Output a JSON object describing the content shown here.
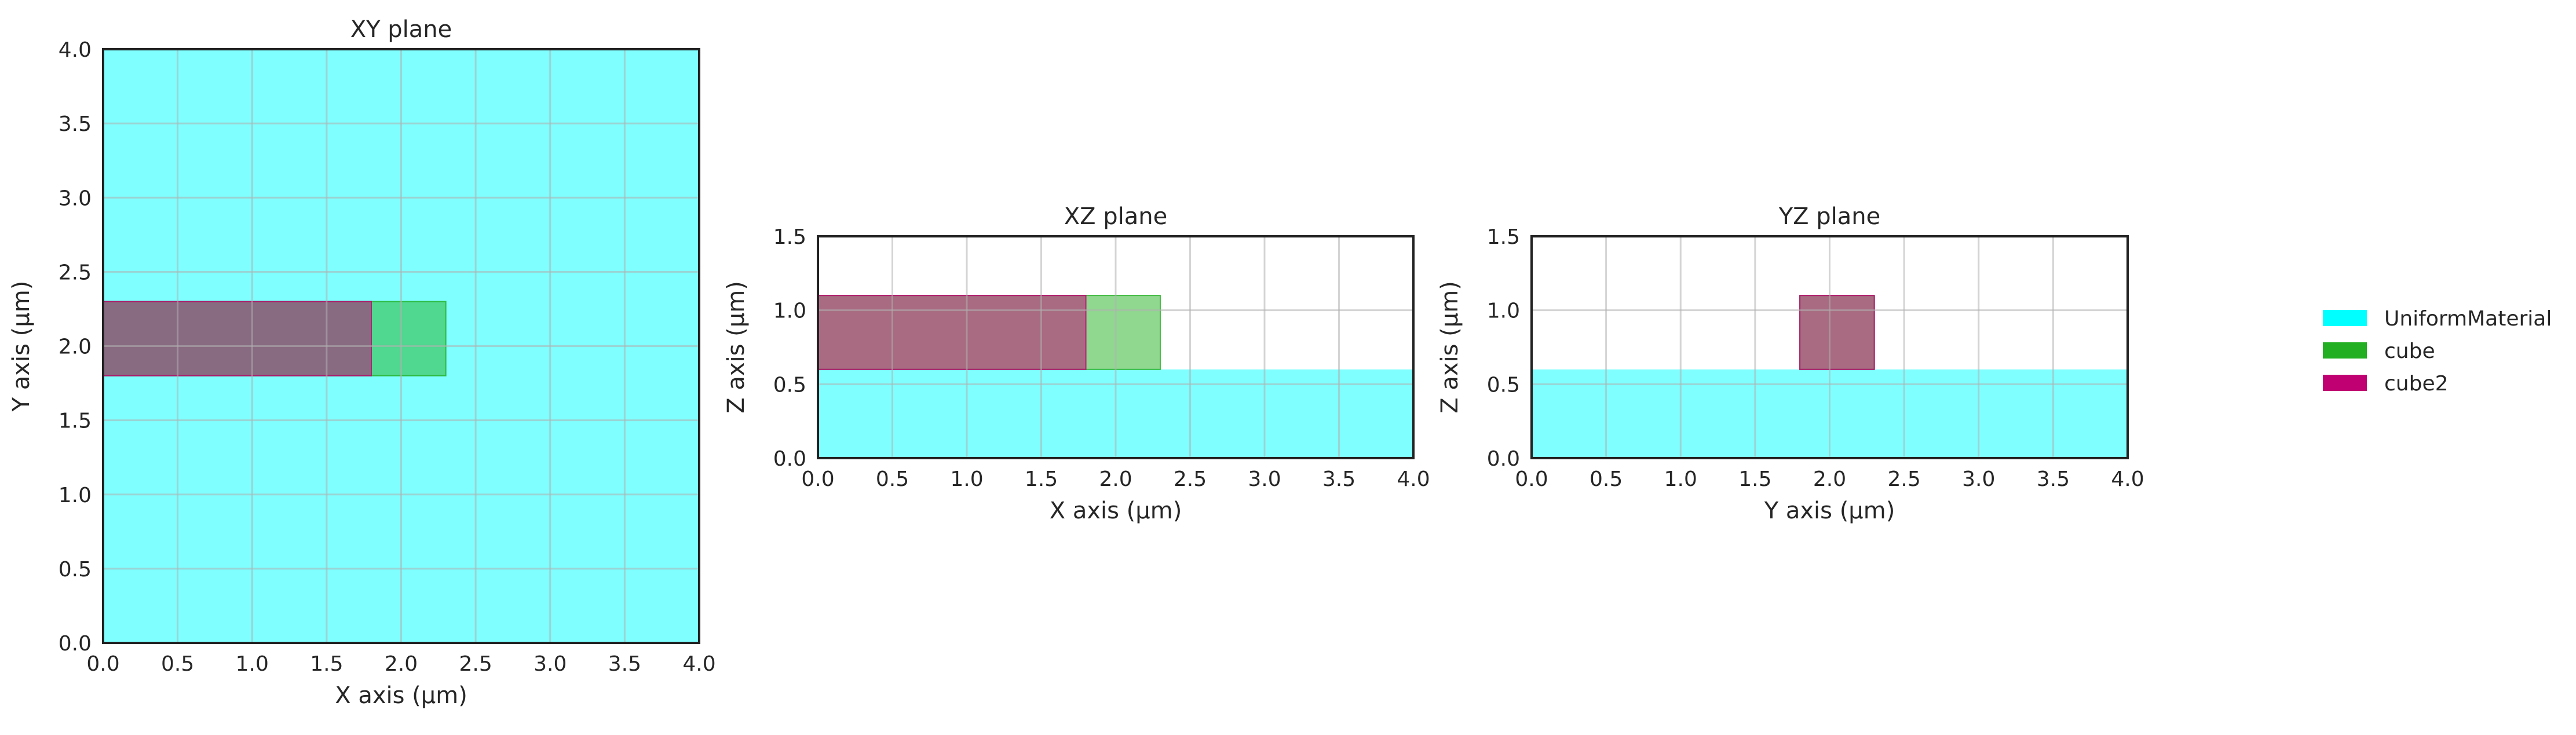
{
  "legend": [
    {
      "name": "UniformMaterial",
      "color": "#00ffff"
    },
    {
      "name": "cube",
      "color": "#22b022"
    },
    {
      "name": "cube2",
      "color": "#c00072"
    }
  ],
  "chart_data": [
    {
      "type": "rect-section",
      "title": "XY plane",
      "xlabel": "X axis (µm)",
      "ylabel": "Y axis (µm)",
      "xlim": [
        0,
        4.0
      ],
      "ylim": [
        0,
        4.0
      ],
      "xticks": [
        "0.0",
        "0.5",
        "1.0",
        "1.5",
        "2.0",
        "2.5",
        "3.0",
        "3.5",
        "4.0"
      ],
      "yticks": [
        "0.0",
        "0.5",
        "1.0",
        "1.5",
        "2.0",
        "2.5",
        "3.0",
        "3.5",
        "4.0"
      ],
      "grid": true,
      "shapes": [
        {
          "material": "UniformMaterial",
          "x0": 0,
          "x1": 4.0,
          "y0": 0,
          "y1": 4.0
        },
        {
          "material": "cube",
          "x0": 0,
          "x1": 2.3,
          "y0": 1.8,
          "y1": 2.3
        },
        {
          "material": "cube2",
          "x0": 0,
          "x1": 1.8,
          "y0": 1.8,
          "y1": 2.3
        }
      ]
    },
    {
      "type": "rect-section",
      "title": "XZ plane",
      "xlabel": "X axis (µm)",
      "ylabel": "Z axis (µm)",
      "xlim": [
        0,
        4.0
      ],
      "ylim": [
        0,
        1.5
      ],
      "xticks": [
        "0.0",
        "0.5",
        "1.0",
        "1.5",
        "2.0",
        "2.5",
        "3.0",
        "3.5",
        "4.0"
      ],
      "yticks": [
        "0.0",
        "0.5",
        "1.0",
        "1.5"
      ],
      "grid": true,
      "shapes": [
        {
          "material": "UniformMaterial",
          "x0": 0,
          "x1": 4.0,
          "y0": 0,
          "y1": 0.6
        },
        {
          "material": "cube",
          "x0": 0,
          "x1": 2.3,
          "y0": 0.6,
          "y1": 1.1
        },
        {
          "material": "cube2",
          "x0": 0,
          "x1": 1.8,
          "y0": 0.6,
          "y1": 1.1
        }
      ]
    },
    {
      "type": "rect-section",
      "title": "YZ plane",
      "xlabel": "Y axis (µm)",
      "ylabel": "Z axis (µm)",
      "xlim": [
        0,
        4.0
      ],
      "ylim": [
        0,
        1.5
      ],
      "xticks": [
        "0.0",
        "0.5",
        "1.0",
        "1.5",
        "2.0",
        "2.5",
        "3.0",
        "3.5",
        "4.0"
      ],
      "yticks": [
        "0.0",
        "0.5",
        "1.0",
        "1.5"
      ],
      "grid": true,
      "shapes": [
        {
          "material": "UniformMaterial",
          "x0": 0,
          "x1": 4.0,
          "y0": 0,
          "y1": 0.6
        },
        {
          "material": "cube",
          "x0": 1.8,
          "x1": 2.3,
          "y0": 0.6,
          "y1": 1.1
        },
        {
          "material": "cube2",
          "x0": 1.8,
          "x1": 2.3,
          "y0": 0.6,
          "y1": 1.1
        }
      ]
    }
  ]
}
